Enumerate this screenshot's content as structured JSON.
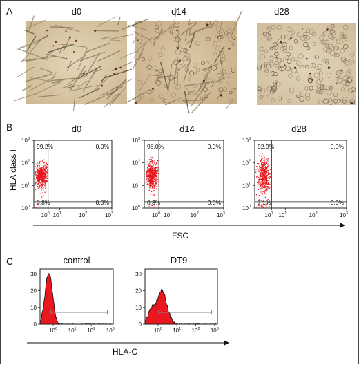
{
  "panels": {
    "A": {
      "letter": "A",
      "titles": [
        "d0",
        "d14",
        "d28"
      ]
    },
    "B": {
      "letter": "B",
      "titles": [
        "d0",
        "d14",
        "d28"
      ],
      "ylabel": "HLA class I",
      "xlabel": "FSC",
      "tick_base": "10",
      "tick_exps": [
        "0",
        "1",
        "2",
        "3"
      ],
      "quadrants": [
        {
          "ul": "99.2%",
          "ur": "0.0%",
          "ll": "0.8%",
          "lr": "0.0%"
        },
        {
          "ul": "98.0%",
          "ur": "0.0%",
          "ll": "0.8%",
          "lr": "0.0%"
        },
        {
          "ul": "92.9%",
          "ur": "0.0%",
          "ll": "7.1%",
          "lr": "0.0%"
        }
      ]
    },
    "C": {
      "letter": "C",
      "titles": [
        "control",
        "DT9"
      ],
      "xlabel": "HLA-C",
      "y_ticks": [
        "0",
        "10",
        "20",
        "30"
      ],
      "x_tick_base": "10",
      "x_tick_exps": [
        "0",
        "1",
        "2",
        "3"
      ]
    }
  },
  "colors": {
    "dots": "#e8181e",
    "histogram_fill": "#e8181e",
    "micrograph_bg": "#d8c7a5"
  }
}
